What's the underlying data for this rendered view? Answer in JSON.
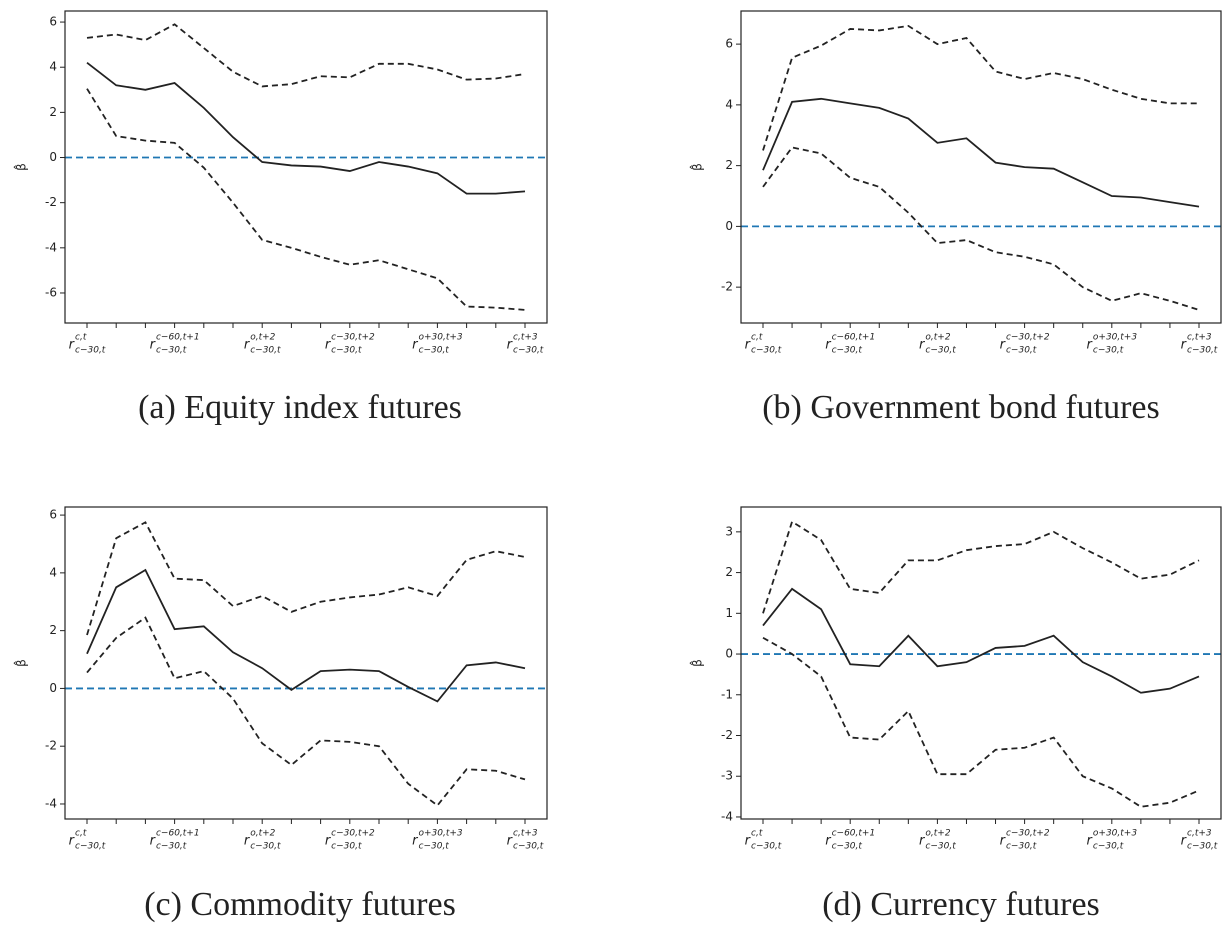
{
  "chart_data": [
    {
      "type": "line",
      "caption": "(a) Equity index futures",
      "ylabel": "β̂",
      "categories": [
        {
          "symbol": "r",
          "sup": "c,t",
          "sub": "c−30,t"
        },
        null,
        null,
        {
          "symbol": "r",
          "sup": "c−60,t+1",
          "sub": "c−30,t"
        },
        null,
        null,
        {
          "symbol": "r",
          "sup": "o,t+2",
          "sub": "c−30,t"
        },
        null,
        null,
        {
          "symbol": "r",
          "sup": "c−30,t+2",
          "sub": "c−30,t"
        },
        null,
        null,
        {
          "symbol": "r",
          "sup": "o+30,t+3",
          "sub": "c−30,t"
        },
        null,
        null,
        {
          "symbol": "r",
          "sup": "c,t+3",
          "sub": "c−30,t"
        }
      ],
      "series": [
        {
          "color": "#222222",
          "dashed": true,
          "values": [
            5.3,
            5.45,
            5.2,
            5.9,
            4.85,
            3.8,
            3.15,
            3.25,
            3.6,
            3.55,
            4.15,
            4.15,
            3.9,
            3.45,
            3.5,
            3.7
          ]
        },
        {
          "color": "#222222",
          "dashed": false,
          "values": [
            4.2,
            3.2,
            3.0,
            3.3,
            2.2,
            0.9,
            -0.2,
            -0.35,
            -0.4,
            -0.6,
            -0.2,
            -0.4,
            -0.7,
            -1.6,
            -1.6,
            -1.5
          ]
        },
        {
          "color": "#222222",
          "dashed": true,
          "values": [
            3.05,
            0.95,
            0.75,
            0.65,
            -0.45,
            -2.0,
            -3.65,
            -4.0,
            -4.4,
            -4.75,
            -4.55,
            -4.95,
            -5.35,
            -6.6,
            -6.65,
            -6.75
          ]
        }
      ],
      "hline": {
        "value": 0,
        "color": "#1f77b4"
      },
      "ylim": [
        -7.33,
        6.49
      ],
      "yticks": [
        -6,
        -4,
        -2,
        0,
        2,
        4,
        6
      ]
    },
    {
      "type": "line",
      "caption": "(b) Government bond futures",
      "ylabel": "β̂",
      "categories": [
        {
          "symbol": "r",
          "sup": "c,t",
          "sub": "c−30,t"
        },
        null,
        null,
        {
          "symbol": "r",
          "sup": "c−60,t+1",
          "sub": "c−30,t"
        },
        null,
        null,
        {
          "symbol": "r",
          "sup": "o,t+2",
          "sub": "c−30,t"
        },
        null,
        null,
        {
          "symbol": "r",
          "sup": "c−30,t+2",
          "sub": "c−30,t"
        },
        null,
        null,
        {
          "symbol": "r",
          "sup": "o+30,t+3",
          "sub": "c−30,t"
        },
        null,
        null,
        {
          "symbol": "r",
          "sup": "c,t+3",
          "sub": "c−30,t"
        }
      ],
      "series": [
        {
          "color": "#222222",
          "dashed": true,
          "values": [
            2.5,
            5.55,
            5.95,
            6.5,
            6.45,
            6.6,
            6.0,
            6.2,
            5.1,
            4.85,
            5.05,
            4.85,
            4.5,
            4.2,
            4.05,
            4.05
          ]
        },
        {
          "color": "#222222",
          "dashed": false,
          "values": [
            1.85,
            4.1,
            4.2,
            4.05,
            3.9,
            3.55,
            2.75,
            2.9,
            2.1,
            1.95,
            1.9,
            1.45,
            1.0,
            0.95,
            0.8,
            0.65
          ]
        },
        {
          "color": "#222222",
          "dashed": true,
          "values": [
            1.3,
            2.6,
            2.4,
            1.6,
            1.3,
            0.45,
            -0.55,
            -0.45,
            -0.85,
            -1.0,
            -1.25,
            -2.0,
            -2.45,
            -2.2,
            -2.45,
            -2.75
          ]
        }
      ],
      "hline": {
        "value": 0,
        "color": "#1f77b4"
      },
      "ylim": [
        -3.18,
        7.09
      ],
      "yticks": [
        -2,
        0,
        2,
        4,
        6
      ]
    },
    {
      "type": "line",
      "caption": "(c) Commodity futures",
      "ylabel": "β̂",
      "categories": [
        {
          "symbol": "r",
          "sup": "c,t",
          "sub": "c−30,t"
        },
        null,
        null,
        {
          "symbol": "r",
          "sup": "c−60,t+1",
          "sub": "c−30,t"
        },
        null,
        null,
        {
          "symbol": "r",
          "sup": "o,t+2",
          "sub": "c−30,t"
        },
        null,
        null,
        {
          "symbol": "r",
          "sup": "c−30,t+2",
          "sub": "c−30,t"
        },
        null,
        null,
        {
          "symbol": "r",
          "sup": "o+30,t+3",
          "sub": "c−30,t"
        },
        null,
        null,
        {
          "symbol": "r",
          "sup": "c,t+3",
          "sub": "c−30,t"
        }
      ],
      "series": [
        {
          "color": "#222222",
          "dashed": true,
          "values": [
            1.85,
            5.2,
            5.75,
            3.8,
            3.75,
            2.85,
            3.2,
            2.65,
            3.0,
            3.15,
            3.25,
            3.5,
            3.2,
            4.45,
            4.75,
            4.55
          ]
        },
        {
          "color": "#222222",
          "dashed": false,
          "values": [
            1.2,
            3.5,
            4.1,
            2.05,
            2.15,
            1.25,
            0.7,
            -0.05,
            0.6,
            0.65,
            0.6,
            0.05,
            -0.45,
            0.8,
            0.9,
            0.7
          ]
        },
        {
          "color": "#222222",
          "dashed": true,
          "values": [
            0.55,
            1.75,
            2.45,
            0.35,
            0.6,
            -0.35,
            -1.9,
            -2.65,
            -1.8,
            -1.85,
            -2.0,
            -3.3,
            -4.05,
            -2.8,
            -2.85,
            -3.15
          ]
        }
      ],
      "hline": {
        "value": 0,
        "color": "#1f77b4"
      },
      "ylim": [
        -4.52,
        6.28
      ],
      "yticks": [
        -4,
        -2,
        0,
        2,
        4,
        6
      ]
    },
    {
      "type": "line",
      "caption": "(d) Currency futures",
      "ylabel": "β̂",
      "categories": [
        {
          "symbol": "r",
          "sup": "c,t",
          "sub": "c−30,t"
        },
        null,
        null,
        {
          "symbol": "r",
          "sup": "c−60,t+1",
          "sub": "c−30,t"
        },
        null,
        null,
        {
          "symbol": "r",
          "sup": "o,t+2",
          "sub": "c−30,t"
        },
        null,
        null,
        {
          "symbol": "r",
          "sup": "c−30,t+2",
          "sub": "c−30,t"
        },
        null,
        null,
        {
          "symbol": "r",
          "sup": "o+30,t+3",
          "sub": "c−30,t"
        },
        null,
        null,
        {
          "symbol": "r",
          "sup": "c,t+3",
          "sub": "c−30,t"
        }
      ],
      "series": [
        {
          "color": "#222222",
          "dashed": true,
          "values": [
            1.0,
            3.25,
            2.8,
            1.6,
            1.5,
            2.3,
            2.3,
            2.55,
            2.65,
            2.7,
            3.0,
            2.6,
            2.25,
            1.85,
            1.95,
            2.3
          ]
        },
        {
          "color": "#222222",
          "dashed": false,
          "values": [
            0.7,
            1.6,
            1.1,
            -0.25,
            -0.3,
            0.45,
            -0.3,
            -0.2,
            0.15,
            0.2,
            0.45,
            -0.2,
            -0.55,
            -0.95,
            -0.85,
            -0.55
          ]
        },
        {
          "color": "#222222",
          "dashed": true,
          "values": [
            0.4,
            0.0,
            -0.55,
            -2.05,
            -2.1,
            -1.4,
            -2.95,
            -2.95,
            -2.35,
            -2.3,
            -2.05,
            -3.0,
            -3.3,
            -3.75,
            -3.65,
            -3.35
          ]
        }
      ],
      "hline": {
        "value": 0,
        "color": "#1f77b4"
      },
      "ylim": [
        -4.05,
        3.61
      ],
      "yticks": [
        -4,
        -3,
        -2,
        -1,
        0,
        1,
        2,
        3
      ]
    }
  ]
}
